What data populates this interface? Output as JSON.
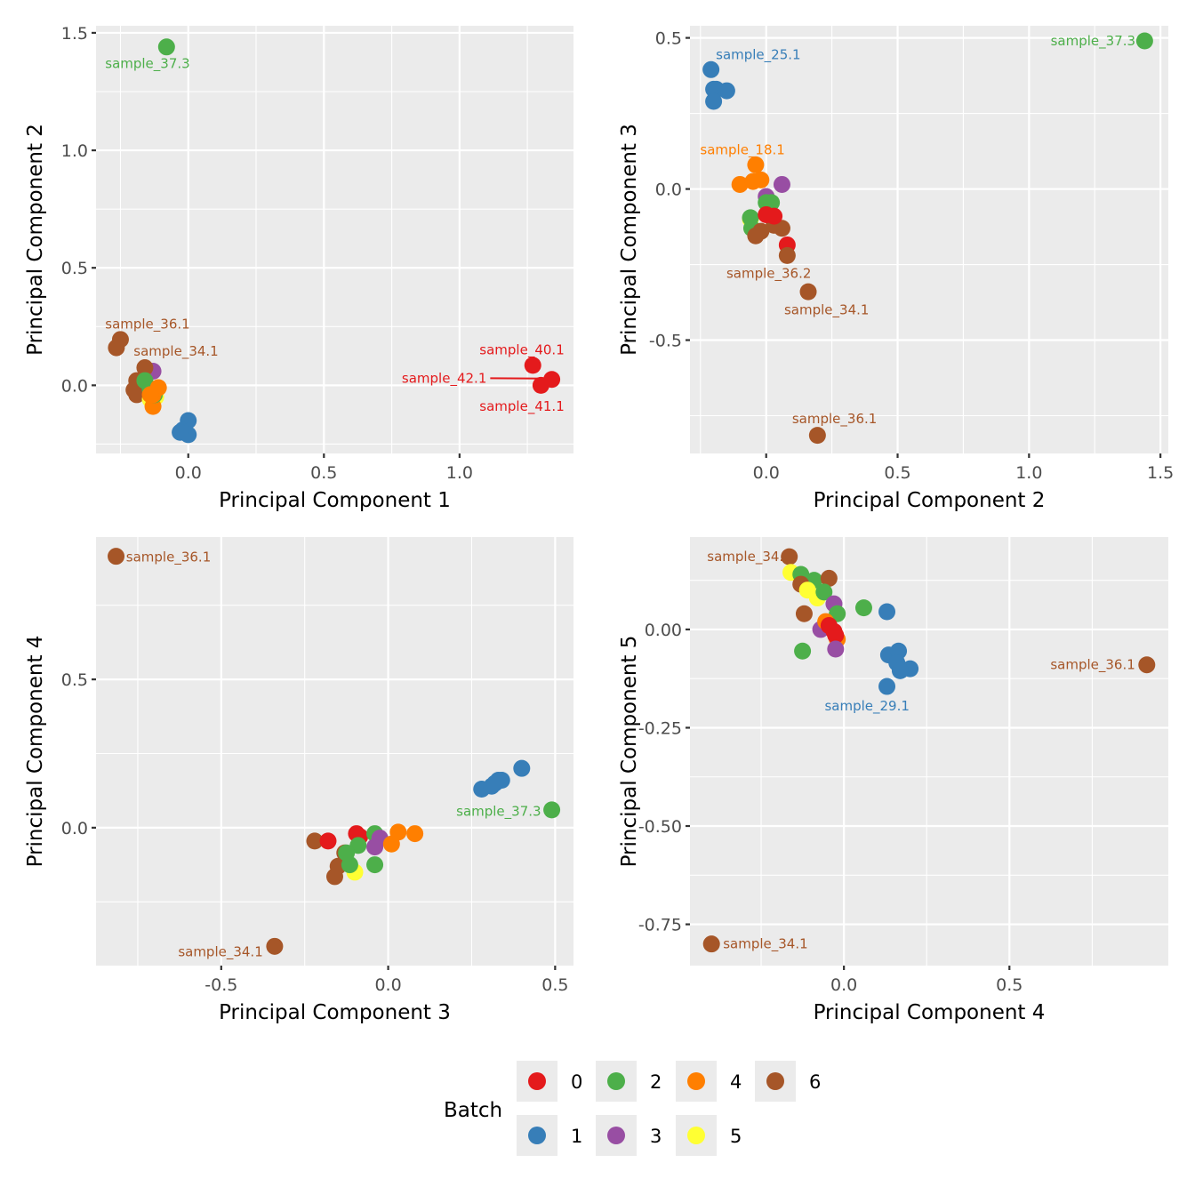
{
  "colors": {
    "0": "#E41A1C",
    "1": "#377EB8",
    "2": "#4DAF4A",
    "3": "#984EA3",
    "4": "#FF7F00",
    "5": "#FFFF33",
    "6": "#A65628",
    "panel_bg": "#EBEBEB",
    "grid": "#FFFFFF"
  },
  "legend": {
    "title": "Batch",
    "entries": [
      {
        "label": "0",
        "batch": "0"
      },
      {
        "label": "1",
        "batch": "1"
      },
      {
        "label": "2",
        "batch": "2"
      },
      {
        "label": "3",
        "batch": "3"
      },
      {
        "label": "4",
        "batch": "4"
      },
      {
        "label": "5",
        "batch": "5"
      },
      {
        "label": "6",
        "batch": "6"
      }
    ]
  },
  "chart_data": [
    {
      "type": "scatter",
      "xlabel": "Principal Component 1",
      "ylabel": "Principal Component 2",
      "xlim": [
        -0.34,
        1.42
      ],
      "ylim": [
        -0.29,
        1.53
      ],
      "xticks": [
        0.0,
        0.5,
        1.0
      ],
      "xtick_labels": [
        "0.0",
        "0.5",
        "1.0"
      ],
      "yticks": [
        0.0,
        0.5,
        1.0,
        1.5
      ],
      "ytick_labels": [
        "0.0",
        "0.5",
        "1.0",
        "1.5"
      ],
      "grid": true,
      "points": [
        {
          "x": -0.08,
          "y": 1.44,
          "batch": "2",
          "label": "sample_37.3",
          "lx": -0.15,
          "ly": 1.37
        },
        {
          "x": -0.25,
          "y": 0.195,
          "batch": "6",
          "label": "sample_36.1",
          "lx": -0.15,
          "ly": 0.26
        },
        {
          "x": -0.265,
          "y": 0.16,
          "batch": "6"
        },
        {
          "x": -0.13,
          "y": 0.06,
          "batch": "3"
        },
        {
          "x": -0.16,
          "y": 0.075,
          "batch": "6",
          "label": "sample_34.1",
          "lx": -0.045,
          "ly": 0.145
        },
        {
          "x": -0.19,
          "y": 0.02,
          "batch": "6"
        },
        {
          "x": -0.2,
          "y": -0.02,
          "batch": "6"
        },
        {
          "x": -0.19,
          "y": -0.04,
          "batch": "6"
        },
        {
          "x": -0.16,
          "y": 0.02,
          "batch": "2"
        },
        {
          "x": -0.14,
          "y": -0.06,
          "batch": "5"
        },
        {
          "x": -0.12,
          "y": -0.05,
          "batch": "5"
        },
        {
          "x": -0.13,
          "y": -0.09,
          "batch": "4"
        },
        {
          "x": -0.14,
          "y": -0.02,
          "batch": "2"
        },
        {
          "x": -0.125,
          "y": -0.04,
          "batch": "2"
        },
        {
          "x": -0.13,
          "y": -0.04,
          "batch": "4"
        },
        {
          "x": -0.11,
          "y": -0.01,
          "batch": "4"
        },
        {
          "x": -0.14,
          "y": -0.04,
          "batch": "4"
        },
        {
          "x": 0.0,
          "y": -0.15,
          "batch": "1"
        },
        {
          "x": -0.02,
          "y": -0.19,
          "batch": "1"
        },
        {
          "x": -0.01,
          "y": -0.2,
          "batch": "1"
        },
        {
          "x": 0.0,
          "y": -0.21,
          "batch": "1"
        },
        {
          "x": -0.03,
          "y": -0.2,
          "batch": "1"
        },
        {
          "x": 1.27,
          "y": 0.085,
          "batch": "0",
          "label": "sample_40.1",
          "lx": 1.23,
          "ly": 0.15
        },
        {
          "x": 1.3,
          "y": 0.0,
          "batch": "0",
          "label": "sample_41.1",
          "lx": 1.23,
          "ly": -0.09
        },
        {
          "x": 1.34,
          "y": 0.025,
          "batch": "0",
          "label": "sample_42.1",
          "lx": 1.1,
          "ly": 0.03,
          "anchor": "end",
          "segment": true
        }
      ]
    },
    {
      "type": "scatter",
      "xlabel": "Principal Component 2",
      "ylabel": "Principal Component 3",
      "xlim": [
        -0.29,
        1.53
      ],
      "ylim": [
        -0.875,
        0.54
      ],
      "xticks": [
        0.0,
        0.5,
        1.0,
        1.5
      ],
      "xtick_labels": [
        "0.0",
        "0.5",
        "1.0",
        "1.5"
      ],
      "yticks": [
        -0.5,
        0.0,
        0.5
      ],
      "ytick_labels": [
        "-0.5",
        "0.0",
        "0.5"
      ],
      "grid": true,
      "points": [
        {
          "x": 1.44,
          "y": 0.49,
          "batch": "2",
          "label": "sample_37.3",
          "lx": 1.405,
          "ly": 0.49,
          "anchor": "end"
        },
        {
          "x": -0.21,
          "y": 0.395,
          "batch": "1",
          "label": "sample_25.1",
          "lx": -0.03,
          "ly": 0.445
        },
        {
          "x": -0.2,
          "y": 0.33,
          "batch": "1"
        },
        {
          "x": -0.19,
          "y": 0.33,
          "batch": "1"
        },
        {
          "x": -0.15,
          "y": 0.325,
          "batch": "1"
        },
        {
          "x": -0.2,
          "y": 0.29,
          "batch": "1"
        },
        {
          "x": -0.04,
          "y": 0.08,
          "batch": "4",
          "label": "sample_18.1",
          "lx": -0.09,
          "ly": 0.13
        },
        {
          "x": -0.1,
          "y": 0.015,
          "batch": "4"
        },
        {
          "x": -0.05,
          "y": 0.025,
          "batch": "4"
        },
        {
          "x": -0.02,
          "y": 0.03,
          "batch": "4"
        },
        {
          "x": 0.06,
          "y": 0.015,
          "batch": "3"
        },
        {
          "x": 0.0,
          "y": -0.025,
          "batch": "3"
        },
        {
          "x": -0.06,
          "y": -0.1,
          "batch": "5"
        },
        {
          "x": 0.0,
          "y": -0.045,
          "batch": "2"
        },
        {
          "x": 0.02,
          "y": -0.045,
          "batch": "2"
        },
        {
          "x": -0.06,
          "y": -0.095,
          "batch": "2"
        },
        {
          "x": -0.055,
          "y": -0.13,
          "batch": "2"
        },
        {
          "x": -0.04,
          "y": -0.155,
          "batch": "6",
          "label": "sample_36.2",
          "lx": 0.01,
          "ly": -0.28
        },
        {
          "x": 0.03,
          "y": -0.12,
          "batch": "6"
        },
        {
          "x": 0.06,
          "y": -0.13,
          "batch": "6"
        },
        {
          "x": -0.02,
          "y": -0.14,
          "batch": "6"
        },
        {
          "x": 0.0,
          "y": -0.085,
          "batch": "0"
        },
        {
          "x": 0.03,
          "y": -0.09,
          "batch": "0"
        },
        {
          "x": 0.08,
          "y": -0.185,
          "batch": "0"
        },
        {
          "x": 0.08,
          "y": -0.22,
          "batch": "6"
        },
        {
          "x": 0.16,
          "y": -0.34,
          "batch": "6",
          "label": "sample_34.1",
          "lx": 0.23,
          "ly": -0.4
        },
        {
          "x": 0.195,
          "y": -0.815,
          "batch": "6",
          "label": "sample_36.1",
          "lx": 0.26,
          "ly": -0.76
        }
      ]
    },
    {
      "type": "scatter",
      "xlabel": "Principal Component 3",
      "ylabel": "Principal Component 4",
      "xlim": [
        -0.875,
        0.555
      ],
      "ylim": [
        -0.465,
        0.98
      ],
      "xticks": [
        -0.5,
        0.0,
        0.5
      ],
      "xtick_labels": [
        "-0.5",
        "0.0",
        "0.5"
      ],
      "yticks": [
        0.0,
        0.5
      ],
      "ytick_labels": [
        "0.0",
        "0.5"
      ],
      "grid": true,
      "points": [
        {
          "x": -0.815,
          "y": 0.915,
          "batch": "6",
          "label": "sample_36.1",
          "lx": -0.785,
          "ly": 0.912,
          "anchor": "start"
        },
        {
          "x": -0.34,
          "y": -0.4,
          "batch": "6",
          "label": "sample_34.1",
          "lx": -0.375,
          "ly": -0.418,
          "anchor": "end"
        },
        {
          "x": 0.49,
          "y": 0.06,
          "batch": "2",
          "label": "sample_37.3",
          "lx": 0.458,
          "ly": 0.055,
          "anchor": "end"
        },
        {
          "x": 0.4,
          "y": 0.2,
          "batch": "1"
        },
        {
          "x": 0.28,
          "y": 0.13,
          "batch": "1"
        },
        {
          "x": 0.31,
          "y": 0.14,
          "batch": "1"
        },
        {
          "x": 0.33,
          "y": 0.16,
          "batch": "1"
        },
        {
          "x": 0.34,
          "y": 0.16,
          "batch": "1"
        },
        {
          "x": 0.32,
          "y": 0.15,
          "batch": "1"
        },
        {
          "x": -0.22,
          "y": -0.045,
          "batch": "6"
        },
        {
          "x": -0.18,
          "y": -0.045,
          "batch": "0"
        },
        {
          "x": -0.095,
          "y": -0.02,
          "batch": "0"
        },
        {
          "x": -0.085,
          "y": -0.03,
          "batch": "0"
        },
        {
          "x": -0.04,
          "y": -0.02,
          "batch": "2"
        },
        {
          "x": -0.025,
          "y": -0.035,
          "batch": "3"
        },
        {
          "x": -0.04,
          "y": -0.065,
          "batch": "3"
        },
        {
          "x": 0.03,
          "y": -0.015,
          "batch": "4"
        },
        {
          "x": 0.08,
          "y": -0.02,
          "batch": "4"
        },
        {
          "x": 0.01,
          "y": -0.055,
          "batch": "4"
        },
        {
          "x": -0.09,
          "y": -0.06,
          "batch": "2"
        },
        {
          "x": -0.13,
          "y": -0.085,
          "batch": "6"
        },
        {
          "x": -0.15,
          "y": -0.13,
          "batch": "6"
        },
        {
          "x": -0.1,
          "y": -0.15,
          "batch": "5"
        },
        {
          "x": -0.115,
          "y": -0.125,
          "batch": "2"
        },
        {
          "x": -0.04,
          "y": -0.125,
          "batch": "2"
        },
        {
          "x": -0.16,
          "y": -0.165,
          "batch": "6"
        },
        {
          "x": -0.125,
          "y": -0.085,
          "batch": "2"
        }
      ]
    },
    {
      "type": "scatter",
      "xlabel": "Principal Component 4",
      "ylabel": "Principal Component 5",
      "xlim": [
        -0.465,
        0.98
      ],
      "ylim": [
        -0.855,
        0.235
      ],
      "xticks": [
        0.0,
        0.5
      ],
      "xtick_labels": [
        "0.0",
        "0.5"
      ],
      "yticks": [
        -0.75,
        -0.5,
        -0.25,
        0.0
      ],
      "ytick_labels": [
        "-0.75",
        "-0.50",
        "-0.25",
        "0.00"
      ],
      "grid": true,
      "points": [
        {
          "x": -0.165,
          "y": 0.185,
          "batch": "6",
          "label": "sample_34.2",
          "lx": -0.285,
          "ly": 0.185
        },
        {
          "x": -0.16,
          "y": 0.145,
          "batch": "5"
        },
        {
          "x": -0.13,
          "y": 0.14,
          "batch": "2"
        },
        {
          "x": -0.09,
          "y": 0.125,
          "batch": "2"
        },
        {
          "x": -0.045,
          "y": 0.13,
          "batch": "6"
        },
        {
          "x": -0.13,
          "y": 0.115,
          "batch": "6"
        },
        {
          "x": -0.11,
          "y": 0.1,
          "batch": "5"
        },
        {
          "x": -0.08,
          "y": 0.08,
          "batch": "5"
        },
        {
          "x": -0.06,
          "y": 0.095,
          "batch": "2"
        },
        {
          "x": -0.03,
          "y": 0.065,
          "batch": "3"
        },
        {
          "x": -0.12,
          "y": 0.04,
          "batch": "6"
        },
        {
          "x": -0.02,
          "y": 0.04,
          "batch": "2"
        },
        {
          "x": 0.06,
          "y": 0.055,
          "batch": "2"
        },
        {
          "x": 0.13,
          "y": 0.045,
          "batch": "1"
        },
        {
          "x": -0.07,
          "y": 0.0,
          "batch": "3"
        },
        {
          "x": -0.055,
          "y": 0.02,
          "batch": "4"
        },
        {
          "x": -0.045,
          "y": 0.01,
          "batch": "0"
        },
        {
          "x": -0.02,
          "y": -0.025,
          "batch": "4"
        },
        {
          "x": -0.03,
          "y": -0.005,
          "batch": "0"
        },
        {
          "x": -0.025,
          "y": -0.015,
          "batch": "0"
        },
        {
          "x": -0.025,
          "y": -0.05,
          "batch": "3"
        },
        {
          "x": -0.125,
          "y": -0.055,
          "batch": "2"
        },
        {
          "x": 0.135,
          "y": -0.065,
          "batch": "1"
        },
        {
          "x": 0.165,
          "y": -0.055,
          "batch": "1"
        },
        {
          "x": 0.16,
          "y": -0.085,
          "batch": "1"
        },
        {
          "x": 0.2,
          "y": -0.1,
          "batch": "1"
        },
        {
          "x": 0.17,
          "y": -0.105,
          "batch": "1"
        },
        {
          "x": 0.13,
          "y": -0.145,
          "batch": "1",
          "label": "sample_29.1",
          "lx": 0.07,
          "ly": -0.195
        },
        {
          "x": 0.915,
          "y": -0.09,
          "batch": "6",
          "label": "sample_36.1",
          "lx": 0.88,
          "ly": -0.09,
          "anchor": "end"
        },
        {
          "x": -0.4,
          "y": -0.8,
          "batch": "6",
          "label": "sample_34.1",
          "lx": -0.365,
          "ly": -0.8,
          "anchor": "start"
        }
      ]
    }
  ]
}
